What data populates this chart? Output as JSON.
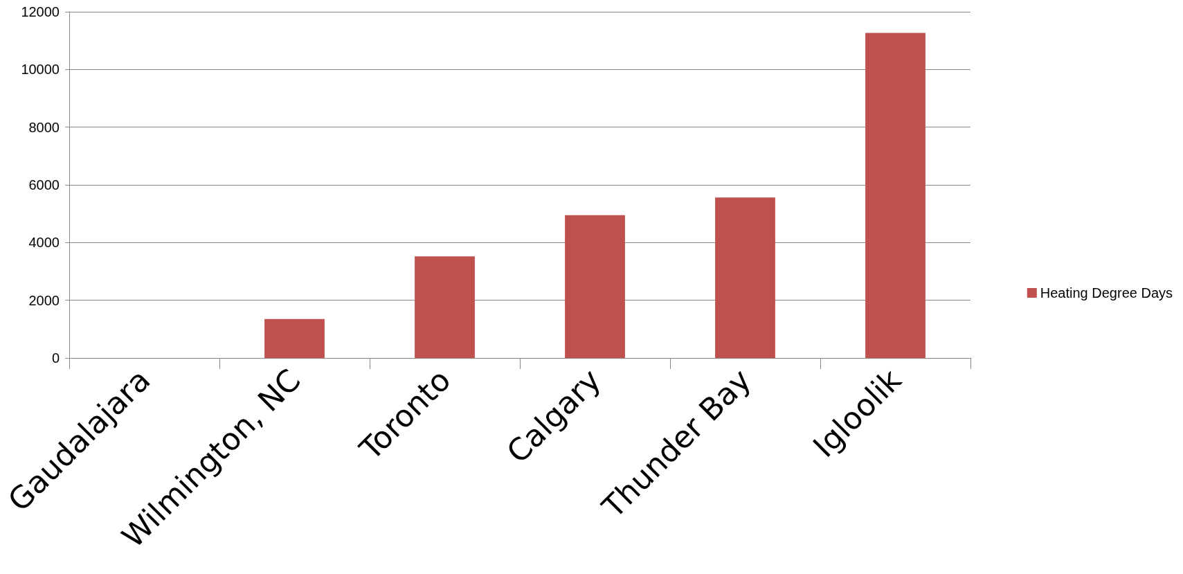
{
  "chart_data": {
    "type": "bar",
    "categories": [
      "Gaudalajara",
      "Wilmington, NC",
      "Toronto",
      "Calgary",
      "Thunder Bay",
      "Igloolik"
    ],
    "series": [
      {
        "name": "Heating Degree Days",
        "color": "#c0504d",
        "values": [
          0,
          1350,
          3520,
          4950,
          5560,
          11270
        ]
      }
    ],
    "ylim": [
      0,
      12000
    ],
    "yticks": [
      0,
      2000,
      4000,
      6000,
      8000,
      10000,
      12000
    ],
    "grid": "y",
    "legend": "right"
  }
}
